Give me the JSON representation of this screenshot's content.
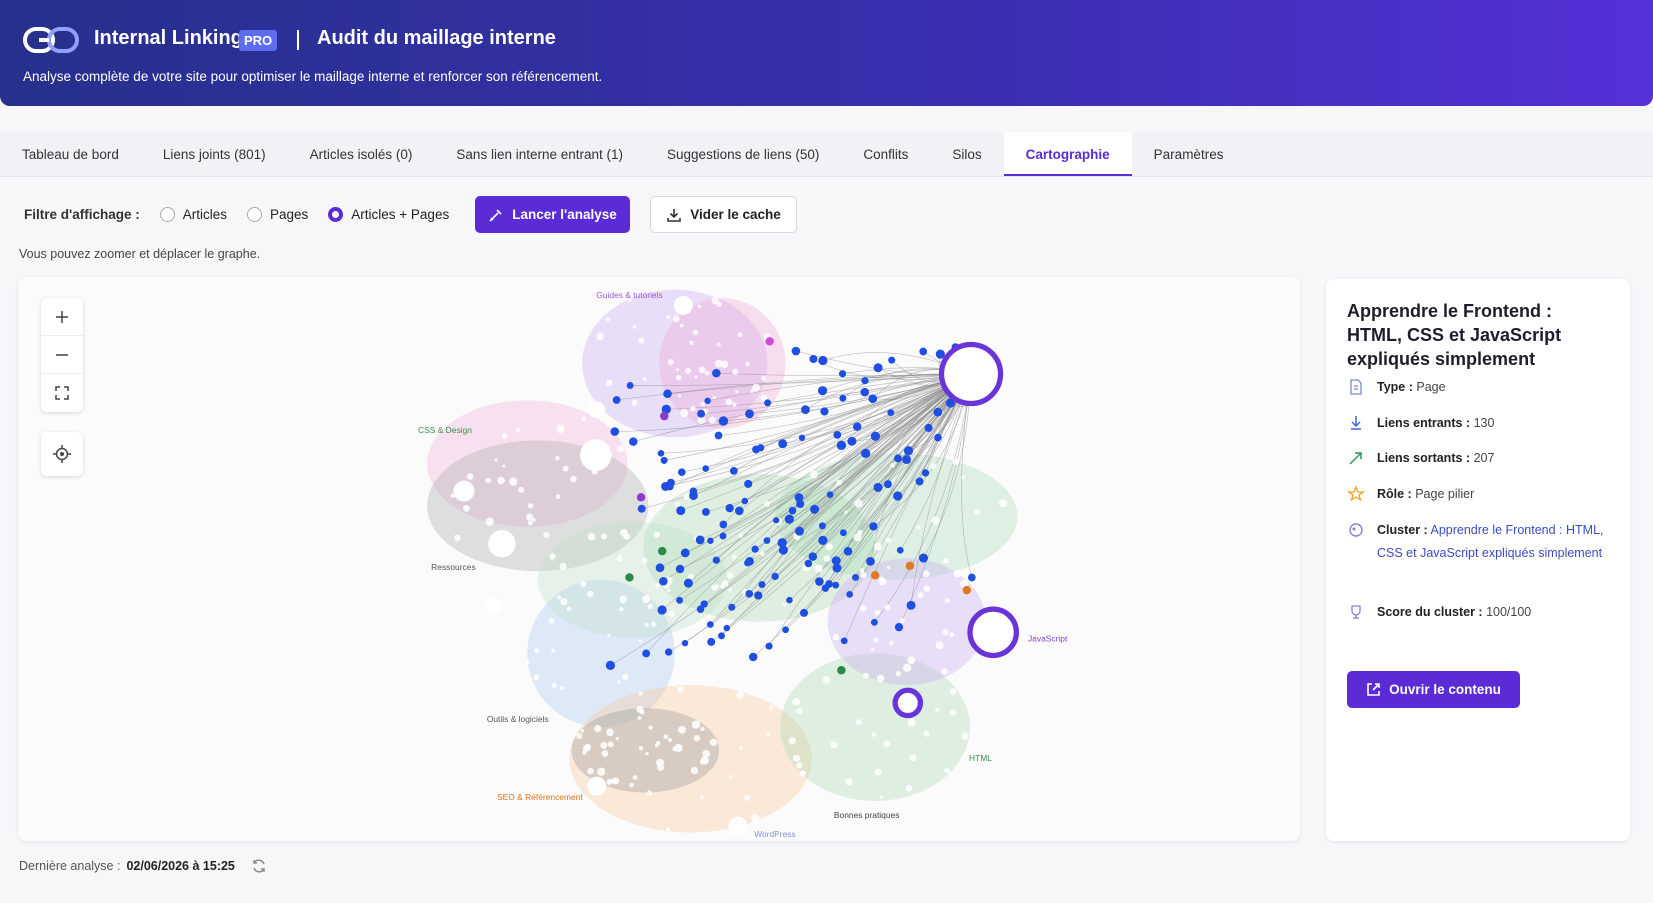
{
  "header": {
    "brand": "Internal Linking",
    "badge": "PRO",
    "title": "Audit du maillage interne",
    "subtitle": "Analyse complète de votre site pour optimiser le maillage interne et renforcer son référencement."
  },
  "tabs": {
    "items": [
      "Tableau de bord",
      "Liens joints (801)",
      "Articles isolés (0)",
      "Sans lien interne entrant (1)",
      "Suggestions de liens (50)",
      "Conflits",
      "Silos",
      "Cartographie",
      "Paramètres"
    ],
    "active": 7
  },
  "filter": {
    "label": "Filtre d'affichage :",
    "options": [
      "Articles",
      "Pages",
      "Articles + Pages"
    ],
    "selected": 2
  },
  "actions": {
    "analyze": "Lancer l'analyse",
    "clear_cache": "Vider le cache"
  },
  "hint": "Vous pouvez zoomer et déplacer le graphe.",
  "graph": {
    "clusters": [
      {
        "label": "Guides & tutoriels",
        "color": "#9b59d6"
      },
      {
        "label": "CSS & Design",
        "color": "#3a8a4a"
      },
      {
        "label": "Ressources",
        "color": "#555555"
      },
      {
        "label": "Outils & logiciels",
        "color": "#555555"
      },
      {
        "label": "SEO & Référencement",
        "color": "#e0721c"
      },
      {
        "label": "WordPress",
        "color": "#8a8fd8"
      },
      {
        "label": "Bonnes pratiques",
        "color": "#444444"
      },
      {
        "label": "HTML",
        "color": "#3a8a4a"
      },
      {
        "label": "JavaScript",
        "color": "#7a45d6"
      }
    ]
  },
  "panel": {
    "title": "Apprendre le Frontend : HTML, CSS et JavaScript expliqués simplement",
    "fields": [
      {
        "label": "Type :",
        "value": "Page"
      },
      {
        "label": "Liens entrants :",
        "value": 130
      },
      {
        "label": "Liens sortants :",
        "value": 207
      },
      {
        "label": "Rôle :",
        "value": "Page pilier"
      },
      {
        "label": "Cluster :",
        "value": "Apprendre le Frontend : HTML, CSS et JavaScript expliqués simplement"
      },
      {
        "label": "Score du cluster :",
        "value": "100/100"
      }
    ],
    "button": "Ouvrir le contenu"
  },
  "footer": {
    "label": "Dernière analyse :",
    "date": "02/06/2026 à 15:25"
  }
}
